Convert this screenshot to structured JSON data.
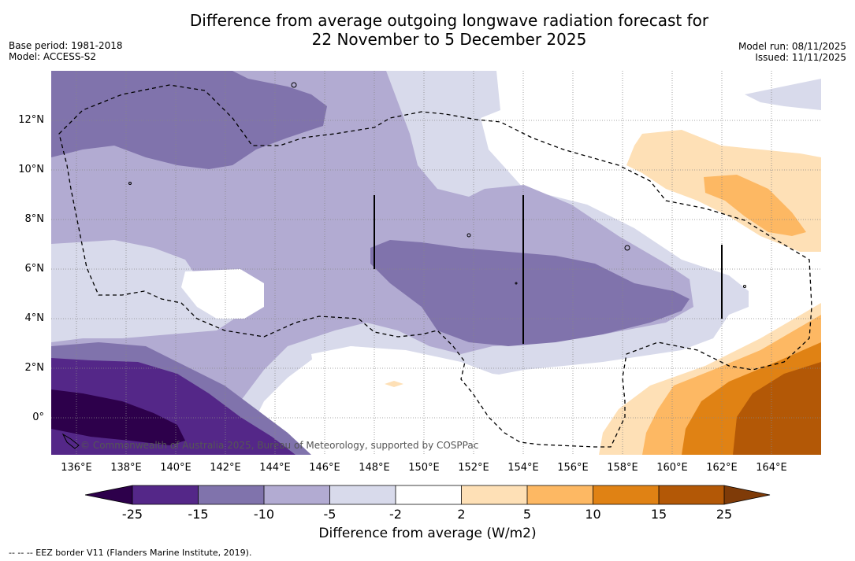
{
  "title": {
    "line1": "Difference from average outgoing longwave radiation forecast for",
    "line2": "22 November to 5 December 2025"
  },
  "meta": {
    "base_period": "Base period: 1981-2018",
    "model": "Model: ACCESS-S2",
    "model_run": "Model run: 08/11/2025",
    "issued": "Issued: 11/11/2025"
  },
  "map": {
    "y_ticks": [
      "12°N",
      "10°N",
      "8°N",
      "6°N",
      "4°N",
      "2°N",
      "0°"
    ],
    "x_ticks": [
      "136°E",
      "138°E",
      "140°E",
      "142°E",
      "144°E",
      "146°E",
      "148°E",
      "150°E",
      "152°E",
      "154°E",
      "156°E",
      "158°E",
      "160°E",
      "162°E",
      "164°E"
    ],
    "copyright": "© Commonwealth of Australia 2025, Bureau of Meteorology, supported by COSPPac"
  },
  "colorbar": {
    "labels": [
      "-25",
      "-15",
      "-10",
      "-5",
      "-2",
      "2",
      "5",
      "10",
      "15",
      "25"
    ],
    "colors": [
      "#2d004b",
      "#542788",
      "#8073ac",
      "#b2abd2",
      "#d8daeb",
      "#ffffff",
      "#fee0b6",
      "#fdb863",
      "#e08214",
      "#b35806",
      "#7f3b08"
    ],
    "title": "Difference from average (W/m2)"
  },
  "footnote": "--  --  -- EEZ border V11 (Flanders Marine Institute, 2019)."
}
